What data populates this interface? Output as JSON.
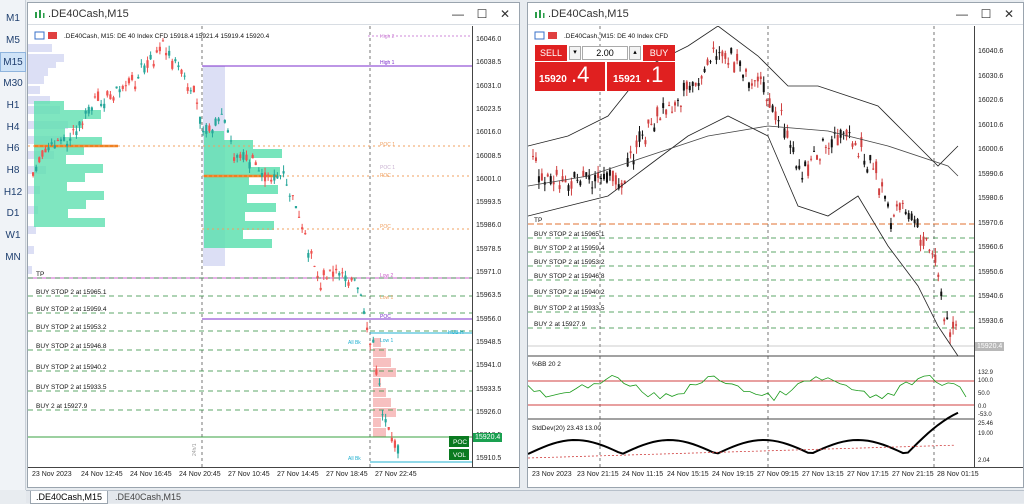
{
  "timeframes": [
    "M1",
    "M5",
    "M15",
    "M30",
    "H1",
    "H4",
    "H6",
    "H8",
    "H12",
    "D1",
    "W1",
    "MN"
  ],
  "active_timeframe": "M15",
  "left": {
    "title": ".DE40Cash,M15",
    "info": ".DE40Cash, M15:  DE 40 Index CFD   15918.4 15921.4 15919.4 15920.4",
    "price_ticks": [
      "16046.0",
      "16038.5",
      "16031.0",
      "16023.5",
      "16016.0",
      "16008.5",
      "16001.0",
      "15993.5",
      "15986.0",
      "15978.5",
      "15971.0",
      "15963.5",
      "15956.0",
      "15948.5",
      "15941.0",
      "15933.5",
      "15926.0",
      "15918.5",
      "15910.5"
    ],
    "time_ticks": [
      "23 Nov 2023",
      "24 Nov 12:45",
      "24 Nov 16:45",
      "24 Nov 20:45",
      "27 Nov 10:45",
      "27 Nov 14:45",
      "27 Nov 18:45",
      "27 Nov 22:45"
    ],
    "orders": [
      "TP",
      "BUY STOP 2 at 15965.1",
      "BUY STOP 2 at 15959.4",
      "BUY STOP 2 at 15953.2",
      "BUY STOP 2 at 15946.8",
      "BUY STOP 2 at 15940.2",
      "BUY STOP 2 at 15933.5",
      "BUY 2 at 15927.9"
    ],
    "levels": [
      "High 2",
      "High 1",
      "POC 1",
      "POC 1",
      "POC",
      "POC",
      "Low 2",
      "Low 1",
      "POC",
      "Low 1",
      "HUB H",
      "All Bk",
      "All Bk"
    ],
    "poc_label": "POC",
    "vol_label": "VOL",
    "price_badge": "15920.4",
    "side_label": "24h/1"
  },
  "right": {
    "title": ".DE40Cash,M15",
    "info": ".DE40Cash, M15:  DE 40 Index CFD",
    "sell_label": "SELL",
    "buy_label": "BUY",
    "lot": "2.00",
    "sell_price_main": "15920",
    "sell_price_big": ".4",
    "buy_price_main": "15921",
    "buy_price_big": ".1",
    "price_ticks": [
      "16040.6",
      "16030.6",
      "16020.6",
      "16010.6",
      "16000.6",
      "15990.6",
      "15980.6",
      "15970.6",
      "15960.6",
      "15950.6",
      "15940.6",
      "15930.6",
      "15920.4"
    ],
    "orders": [
      "TP",
      "BUY STOP 2 at 15965.1",
      "BUY STOP 2 at 15959.4",
      "BUY STOP 2 at 15953.2",
      "BUY STOP 2 at 15946.8",
      "BUY STOP 2 at 15940.2",
      "BUY STOP 2 at 15933.5",
      "BUY 2 at 15927.9"
    ],
    "bb_label": "%BB 20 2",
    "bb_ticks": [
      "132.9",
      "100.0",
      "50.0",
      "0.0",
      "-53.0"
    ],
    "std_label": "StdDev(20) 23.43 13.00",
    "std_ticks": [
      "25.46",
      "19.00",
      "2.04"
    ],
    "time_ticks": [
      "23 Nov 2023",
      "23 Nov 21:15",
      "24 Nov 11:15",
      "24 Nov 15:15",
      "24 Nov 19:15",
      "27 Nov 09:15",
      "27 Nov 13:15",
      "27 Nov 17:15",
      "27 Nov 21:15",
      "28 Nov 01:15"
    ]
  },
  "tabs": [
    ".DE40Cash,M15",
    ".DE40Cash,M15"
  ],
  "colors": {
    "bull": "#26a69a",
    "bear": "#ef5350",
    "accent": "#7b2ccc",
    "sell": "#e02020"
  }
}
